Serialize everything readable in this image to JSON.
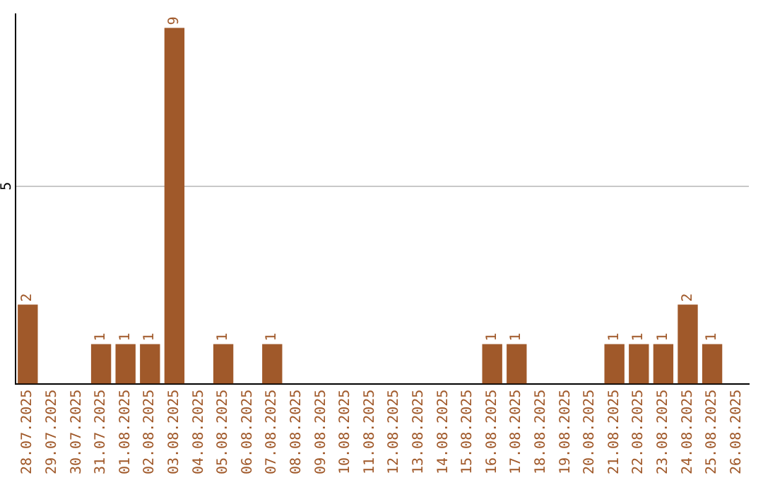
{
  "chart_data": {
    "type": "bar",
    "categories": [
      "28.07.2025",
      "29.07.2025",
      "30.07.2025",
      "31.07.2025",
      "01.08.2025",
      "02.08.2025",
      "03.08.2025",
      "04.08.2025",
      "05.08.2025",
      "06.08.2025",
      "07.08.2025",
      "08.08.2025",
      "09.08.2025",
      "10.08.2025",
      "11.08.2025",
      "12.08.2025",
      "13.08.2025",
      "14.08.2025",
      "15.08.2025",
      "16.08.2025",
      "17.08.2025",
      "18.08.2025",
      "19.08.2025",
      "20.08.2025",
      "21.08.2025",
      "22.08.2025",
      "23.08.2025",
      "24.08.2025",
      "25.08.2025",
      "26.08.2025"
    ],
    "values": [
      2,
      0,
      0,
      1,
      1,
      1,
      9,
      0,
      1,
      0,
      1,
      0,
      0,
      0,
      0,
      0,
      0,
      0,
      0,
      1,
      1,
      0,
      0,
      0,
      1,
      1,
      1,
      2,
      1,
      0
    ],
    "value_labels": [
      "2",
      null,
      null,
      "1",
      "1",
      "1",
      "9",
      null,
      "1",
      null,
      "1",
      null,
      null,
      null,
      null,
      null,
      null,
      null,
      null,
      "1",
      "1",
      null,
      null,
      null,
      "1",
      "1",
      "1",
      "2",
      "1",
      null
    ],
    "color": "#a0592a",
    "ylim": [
      0,
      9.35
    ],
    "yticks": [
      5
    ],
    "grid": "y",
    "legend": false
  }
}
